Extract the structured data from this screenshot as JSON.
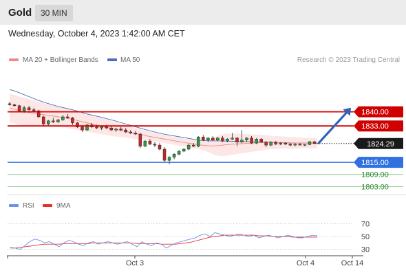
{
  "header": {
    "instrument": "Gold",
    "timeframe": "30 MIN"
  },
  "timestamp": "Wednesday, October 4, 2023 1:42:00 AM CET",
  "legend": {
    "bb_label": "MA 20 + Bollinger Bands",
    "ma50_label": "MA 50"
  },
  "credit": "Research © 2023 Trading Central",
  "rsi_legend": {
    "rsi_label": "RSI",
    "ma_label": "9MA"
  },
  "colors": {
    "bb": "#f08a8a",
    "bb_band": "#fde6e6",
    "ma50": "#4a6fb5",
    "resistance": "#d00000",
    "support": "#3070e0",
    "target": "#8fc98f",
    "current": "#1a1a1a",
    "arrow": "#2f62b8",
    "up": "#2e9e3e",
    "down": "#c62828",
    "rsi": "#6f8fe8",
    "rsi_ma": "#e03030"
  },
  "chart_data": [
    {
      "type": "candlestick",
      "title": "Gold",
      "ylim": [
        1798,
        1862
      ],
      "x_ticks": [
        "Oct 3",
        "Oct 4",
        "Oct 14"
      ],
      "levels": [
        {
          "value": 1840.0,
          "label": "1840.00",
          "kind": "resistance"
        },
        {
          "value": 1833.0,
          "label": "1833.00",
          "kind": "resistance"
        },
        {
          "value": 1824.29,
          "label": "1824.29",
          "kind": "current"
        },
        {
          "value": 1815.0,
          "label": "1815.00",
          "kind": "support"
        },
        {
          "value": 1809.0,
          "label": "1809.00",
          "kind": "target"
        },
        {
          "value": 1803.0,
          "label": "1803.00",
          "kind": "target"
        }
      ],
      "forecast_arrow": {
        "from": 1824.5,
        "to": 1840.5,
        "direction": "up"
      },
      "series": [
        {
          "name": "MA 20 + Bollinger Bands",
          "values": [
            1842,
            1841,
            1840,
            1839.5,
            1839,
            1838.5,
            1838,
            1837.5,
            1837,
            1836.2,
            1835.4,
            1834.6,
            1833.8,
            1833,
            1832.2,
            1831.4,
            1830.8,
            1830,
            1829.2,
            1828.6,
            1827.8,
            1827.2,
            1826.6,
            1826,
            1825.4,
            1824.8,
            1824.2,
            1823.7,
            1823.3,
            1823.1,
            1823.3,
            1823.7,
            1824,
            1824.2,
            1824.4,
            1824.6,
            1824.7,
            1824.8,
            1824.8,
            1824.8,
            1824.7,
            1824.6,
            1824.6,
            1824.5,
            1824.5
          ],
          "upper": [
            1849,
            1848,
            1847,
            1846,
            1845,
            1844,
            1843.4,
            1842.6,
            1841.8,
            1841,
            1840,
            1839,
            1838,
            1837,
            1836,
            1835,
            1834,
            1833,
            1832,
            1831,
            1830,
            1829.2,
            1828.6,
            1828,
            1827.4,
            1826.8,
            1826.2,
            1825.8,
            1826,
            1827,
            1828.5,
            1829.2,
            1829.2,
            1829,
            1829,
            1828.8,
            1828.6,
            1828.2,
            1828,
            1827.8,
            1827.6,
            1827.4,
            1827.2,
            1827,
            1827
          ]
        },
        {
          "name": "MA 50",
          "values": [
            1851,
            1850,
            1848.6,
            1847.2,
            1845.8,
            1844.6,
            1843.6,
            1842.6,
            1841.8,
            1841,
            1840,
            1839,
            1838.2,
            1837.4,
            1836.5,
            1835.6,
            1834.6,
            1833.6,
            1832.6,
            1831.6,
            1830.6,
            1829.8,
            1829,
            1828.4,
            1827.8,
            1827.2,
            1826.6,
            1826,
            1825.7,
            1825.6,
            1825.6,
            1825.5,
            1825.4,
            1825.3,
            1825.2,
            1825.1,
            1825,
            1824.9,
            1824.8,
            1824.7,
            1824.6,
            1824.6,
            1824.5,
            1824.5,
            1824.5
          ]
        }
      ],
      "candles": [
        [
          1844,
          1845,
          1843,
          1843.5
        ],
        [
          1843.5,
          1844,
          1842.5,
          1843
        ],
        [
          1843,
          1843.5,
          1840,
          1840.5
        ],
        [
          1840.5,
          1843,
          1839.5,
          1842
        ],
        [
          1842,
          1843,
          1840.5,
          1841
        ],
        [
          1841,
          1842,
          1840,
          1840.5
        ],
        [
          1840.5,
          1841,
          1837,
          1837.5
        ],
        [
          1837.5,
          1838,
          1833,
          1834
        ],
        [
          1834,
          1836,
          1833,
          1835.5
        ],
        [
          1835.5,
          1837,
          1834.5,
          1835
        ],
        [
          1835,
          1836.5,
          1834.5,
          1836
        ],
        [
          1836,
          1838.5,
          1835.5,
          1837.5
        ],
        [
          1837.5,
          1839,
          1836.5,
          1837
        ],
        [
          1837,
          1837.5,
          1833.5,
          1834.5
        ],
        [
          1834.5,
          1835,
          1832,
          1832.5
        ],
        [
          1832.5,
          1833.5,
          1830,
          1831
        ],
        [
          1831,
          1834,
          1830.5,
          1833.5
        ],
        [
          1833.5,
          1834.5,
          1832,
          1832.5
        ],
        [
          1832.5,
          1833.5,
          1831.5,
          1832
        ],
        [
          1832,
          1833,
          1831,
          1832.5
        ],
        [
          1832.5,
          1833.5,
          1831.5,
          1832
        ],
        [
          1832,
          1833,
          1830.5,
          1831
        ],
        [
          1831,
          1832,
          1830,
          1831.5
        ],
        [
          1831.5,
          1832.5,
          1830.5,
          1831
        ],
        [
          1831,
          1832,
          1829.5,
          1830
        ],
        [
          1830,
          1831,
          1829,
          1829.5
        ],
        [
          1829.5,
          1830.5,
          1828.5,
          1829
        ],
        [
          1829,
          1829.5,
          1822,
          1823
        ],
        [
          1823,
          1826,
          1822.5,
          1825.5
        ],
        [
          1825.5,
          1826.5,
          1823.5,
          1824
        ],
        [
          1824,
          1825,
          1822.5,
          1823.5
        ],
        [
          1823.5,
          1824.5,
          1821,
          1821.5
        ],
        [
          1821.5,
          1822.5,
          1815,
          1816
        ],
        [
          1816,
          1818,
          1814,
          1817.5
        ],
        [
          1817.5,
          1819.5,
          1816.5,
          1819
        ],
        [
          1819,
          1821,
          1818.5,
          1820.5
        ],
        [
          1820.5,
          1822,
          1820,
          1821.5
        ],
        [
          1821.5,
          1824,
          1821,
          1823.5
        ],
        [
          1823.5,
          1824.5,
          1822.5,
          1823
        ],
        [
          1823,
          1828,
          1822.5,
          1827.5
        ],
        [
          1827.5,
          1828.5,
          1825.5,
          1826
        ],
        [
          1826,
          1827.5,
          1825,
          1827
        ],
        [
          1827,
          1828,
          1825.5,
          1826
        ],
        [
          1826,
          1827.5,
          1825.5,
          1827
        ],
        [
          1827,
          1828,
          1825,
          1825.5
        ],
        [
          1825.5,
          1827,
          1825,
          1826.5
        ],
        [
          1826.5,
          1829.5,
          1826,
          1827
        ],
        [
          1827,
          1827.5,
          1823,
          1825
        ],
        [
          1825,
          1831,
          1824.5,
          1826
        ],
        [
          1826,
          1827.5,
          1825,
          1827
        ],
        [
          1827,
          1828,
          1824,
          1824.5
        ],
        [
          1824.5,
          1827,
          1824,
          1826.5
        ],
        [
          1826.5,
          1827,
          1824.5,
          1825
        ],
        [
          1825,
          1825.5,
          1822.5,
          1823.5
        ],
        [
          1823.5,
          1825.5,
          1823,
          1825
        ],
        [
          1825,
          1825.5,
          1823.5,
          1824
        ],
        [
          1824,
          1825,
          1823.5,
          1824.5
        ],
        [
          1824.5,
          1825,
          1823.5,
          1824
        ],
        [
          1824,
          1824.5,
          1823,
          1823.5
        ],
        [
          1823.5,
          1824.5,
          1823,
          1824
        ],
        [
          1824,
          1824.5,
          1823.5,
          1823.5
        ],
        [
          1823.5,
          1824,
          1823,
          1823.8
        ],
        [
          1823.8,
          1825.5,
          1823.5,
          1825.2
        ],
        [
          1825.2,
          1825.6,
          1824,
          1824.3
        ]
      ]
    },
    {
      "type": "line",
      "title": "RSI",
      "ylim": [
        20,
        80
      ],
      "y_ticks": [
        70,
        50,
        30
      ],
      "series": [
        {
          "name": "RSI",
          "values": [
            33,
            32,
            30,
            36,
            42,
            46,
            44,
            40,
            42,
            38,
            34,
            40,
            44,
            42,
            38,
            36,
            40,
            42,
            38,
            40,
            42,
            40,
            38,
            40,
            42,
            38,
            34,
            42,
            38,
            36,
            40,
            38,
            32,
            36,
            40,
            42,
            44,
            46,
            48,
            52,
            54,
            50,
            56,
            54,
            52,
            50,
            52,
            54,
            52,
            50,
            52,
            48,
            50,
            52,
            50,
            48,
            50,
            52,
            50,
            48,
            48,
            50,
            52,
            51
          ]
        },
        {
          "name": "9MA",
          "values": [
            32,
            32,
            33,
            34,
            35,
            36,
            37,
            38,
            38,
            38,
            38,
            39,
            39,
            39,
            39,
            39,
            39,
            40,
            40,
            40,
            40,
            40,
            40,
            40,
            40,
            40,
            39,
            39,
            39,
            39,
            39,
            38,
            38,
            38,
            38,
            39,
            40,
            41,
            43,
            45,
            47,
            49,
            50,
            51,
            52,
            52,
            52,
            52,
            52,
            52,
            52,
            51,
            51,
            51,
            50,
            50,
            50,
            50,
            49,
            49,
            49,
            49,
            49,
            49
          ]
        }
      ]
    }
  ]
}
